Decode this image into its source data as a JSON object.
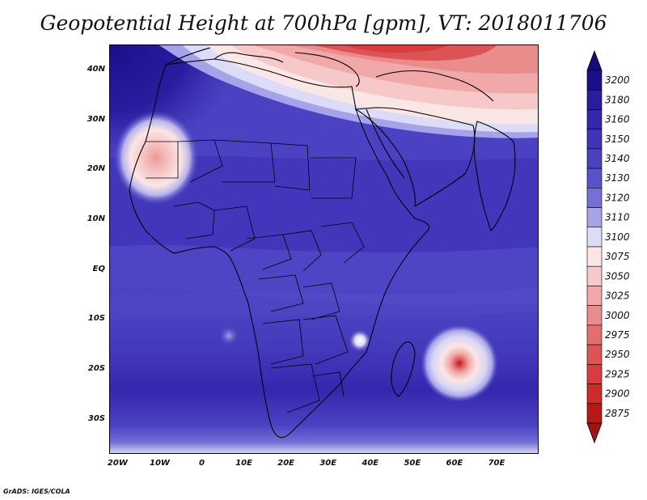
{
  "title": "Geopotential Height at 700hPa [gpm], VT: 2018011706",
  "credit": "GrADS: IGES/COLA",
  "map": {
    "region": "Africa",
    "lon_range": [
      -22,
      80
    ],
    "lat_range": [
      -37,
      45
    ],
    "y_ticks": [
      {
        "lat": 40,
        "label": "40N"
      },
      {
        "lat": 30,
        "label": "30N"
      },
      {
        "lat": 20,
        "label": "20N"
      },
      {
        "lat": 10,
        "label": "10N"
      },
      {
        "lat": 0,
        "label": "EQ"
      },
      {
        "lat": -10,
        "label": "10S"
      },
      {
        "lat": -20,
        "label": "20S"
      },
      {
        "lat": -30,
        "label": "30S"
      }
    ],
    "x_ticks": [
      {
        "lon": -20,
        "label": "20W"
      },
      {
        "lon": -10,
        "label": "10W"
      },
      {
        "lon": 0,
        "label": "0"
      },
      {
        "lon": 10,
        "label": "10E"
      },
      {
        "lon": 20,
        "label": "20E"
      },
      {
        "lon": 30,
        "label": "30E"
      },
      {
        "lon": 40,
        "label": "40E"
      },
      {
        "lon": 50,
        "label": "50E"
      },
      {
        "lon": 60,
        "label": "60E"
      },
      {
        "lon": 70,
        "label": "70E"
      }
    ],
    "features": [
      {
        "name": "low-heights-north",
        "desc": "Lower heights (2975-3100) over Mediterranean, Middle East, Arabia"
      },
      {
        "name": "low-sahara",
        "desc": "Cut-off low over Western Sahara near 20N 12W"
      },
      {
        "name": "tropical-cyclone",
        "desc": "Intense low near 19S 62E east of Madagascar"
      },
      {
        "name": "mozambique-low",
        "desc": "Weak low near 14S 38E"
      }
    ]
  },
  "colorbar": {
    "levels": [
      {
        "label": "3200",
        "color": "#1c0f8a"
      },
      {
        "label": "3180",
        "color": "#2a1c9e"
      },
      {
        "label": "3160",
        "color": "#3527ad"
      },
      {
        "label": "3150",
        "color": "#4035b8"
      },
      {
        "label": "3140",
        "color": "#4a42c2"
      },
      {
        "label": "3130",
        "color": "#5852cc"
      },
      {
        "label": "3120",
        "color": "#7470d8"
      },
      {
        "label": "3110",
        "color": "#a6a3e8"
      },
      {
        "label": "3100",
        "color": "#dcdcf6"
      },
      {
        "label": "3075",
        "color": "#fbe6e6"
      },
      {
        "label": "3050",
        "color": "#f6c8c8"
      },
      {
        "label": "3025",
        "color": "#f0a8a8"
      },
      {
        "label": "3000",
        "color": "#ea8c8c"
      },
      {
        "label": "2975",
        "color": "#e46e6e"
      },
      {
        "label": "2950",
        "color": "#de5454"
      },
      {
        "label": "2925",
        "color": "#d83c3c"
      },
      {
        "label": "2900",
        "color": "#cf2a2a"
      },
      {
        "label": "2875",
        "color": "#b81818"
      }
    ],
    "top_arrow_color": "#180b80",
    "bottom_arrow_color": "#a81010"
  }
}
